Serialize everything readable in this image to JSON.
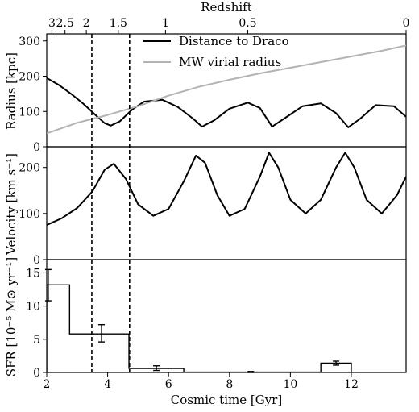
{
  "chart_data": [
    {
      "type": "line",
      "panel": "radius",
      "ylabel": "Radius [kpc]",
      "ylim": [
        0,
        320
      ],
      "yticks": [
        0,
        100,
        200,
        300
      ],
      "top_axis": {
        "label": "Redshift",
        "ticks": [
          {
            "label": "3",
            "t": 2.17
          },
          {
            "label": "2.5",
            "t": 2.6
          },
          {
            "label": "2",
            "t": 3.3
          },
          {
            "label": "1.5",
            "t": 4.35
          },
          {
            "label": "1",
            "t": 5.9
          },
          {
            "label": "0.5",
            "t": 8.6
          },
          {
            "label": "0",
            "t": 13.8
          }
        ]
      },
      "legend": {
        "position": "top-right"
      },
      "series": [
        {
          "name": "Distance to Draco",
          "color": "#000000",
          "x": [
            2.0,
            2.4,
            2.8,
            3.2,
            3.6,
            3.9,
            4.1,
            4.4,
            4.8,
            5.2,
            5.8,
            6.3,
            6.8,
            7.1,
            7.5,
            8.0,
            8.6,
            9.0,
            9.4,
            9.8,
            10.4,
            11.0,
            11.5,
            11.9,
            12.3,
            12.8,
            13.4,
            13.8
          ],
          "y": [
            195,
            175,
            150,
            122,
            90,
            67,
            60,
            72,
            105,
            128,
            133,
            113,
            80,
            57,
            75,
            108,
            125,
            110,
            57,
            80,
            115,
            123,
            95,
            55,
            80,
            118,
            115,
            85
          ]
        },
        {
          "name": "MW virial radius",
          "color": "#b3b3b3",
          "x": [
            2.0,
            3.0,
            4.0,
            5.0,
            6.0,
            7.0,
            8.0,
            9.0,
            10.0,
            11.0,
            12.0,
            13.0,
            13.8
          ],
          "y": [
            38,
            68,
            90,
            115,
            145,
            170,
            190,
            208,
            224,
            240,
            256,
            272,
            287
          ]
        }
      ]
    },
    {
      "type": "line",
      "panel": "velocity",
      "ylabel": "Velocity [km s⁻¹]",
      "ylim": [
        0,
        245
      ],
      "yticks": [
        0,
        100,
        200
      ],
      "series": [
        {
          "name": "",
          "color": "#000000",
          "x": [
            2.0,
            2.5,
            3.0,
            3.5,
            3.9,
            4.2,
            4.6,
            5.0,
            5.5,
            6.0,
            6.5,
            6.9,
            7.2,
            7.6,
            8.0,
            8.5,
            9.0,
            9.3,
            9.6,
            10.0,
            10.5,
            11.0,
            11.5,
            11.8,
            12.1,
            12.5,
            13.0,
            13.5,
            13.8
          ],
          "y": [
            75,
            90,
            112,
            148,
            195,
            208,
            175,
            120,
            95,
            110,
            170,
            226,
            210,
            140,
            95,
            110,
            180,
            232,
            200,
            130,
            100,
            130,
            200,
            232,
            200,
            130,
            100,
            140,
            180
          ]
        }
      ]
    },
    {
      "type": "step",
      "panel": "sfr",
      "xlabel": "Cosmic time [Gyr]",
      "ylabel": "SFR [10⁻⁵ M⊙ yr⁻¹]",
      "xlim": [
        2,
        13.8
      ],
      "xticks": [
        2,
        4,
        6,
        8,
        10,
        12
      ],
      "ylim": [
        0,
        17
      ],
      "yticks": [
        0,
        5,
        10,
        15
      ],
      "bins": [
        {
          "x0": 2.0,
          "x1": 2.75,
          "value": 13.2,
          "err_lo": 10.8,
          "err_hi": 15.5,
          "err_x": 2.05
        },
        {
          "x0": 2.75,
          "x1": 4.7,
          "value": 5.8,
          "err_lo": 4.6,
          "err_hi": 7.2,
          "err_x": 3.8
        },
        {
          "x0": 4.7,
          "x1": 6.5,
          "value": 0.6,
          "err_lo": 0.3,
          "err_hi": 1.0,
          "err_x": 5.6
        },
        {
          "x0": 6.5,
          "x1": 11.0,
          "value": 0.05,
          "err_lo": 0.0,
          "err_hi": 0.15,
          "err_x": 8.7
        },
        {
          "x0": 11.0,
          "x1": 12.0,
          "value": 1.4,
          "err_lo": 1.1,
          "err_hi": 1.7,
          "err_x": 11.5
        },
        {
          "x0": 12.0,
          "x1": 13.8,
          "value": 0.0,
          "err_lo": 0.0,
          "err_hi": 0.0,
          "err_x": 12.9
        }
      ]
    }
  ],
  "vertical_markers": [
    3.48,
    4.72
  ]
}
